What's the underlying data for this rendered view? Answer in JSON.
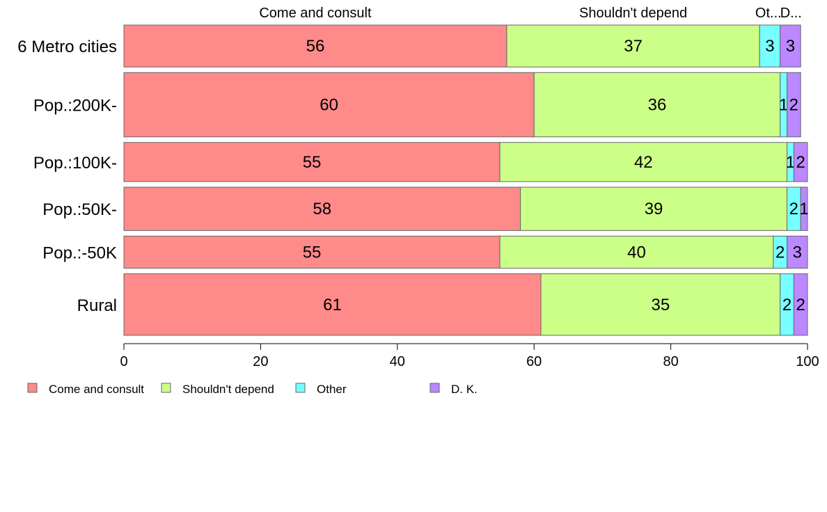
{
  "chart_data": {
    "type": "bar",
    "orientation": "horizontal",
    "stacked": true,
    "categories": [
      "6 Metro cities",
      "Pop.:200K-",
      "Pop.:100K-",
      "Pop.:50K-",
      "Pop.:-50K",
      "Rural"
    ],
    "series": [
      {
        "name": "Come and consult",
        "color": "#FF8A8A",
        "values": [
          56,
          60,
          55,
          58,
          55,
          61
        ]
      },
      {
        "name": "Shouldn't depend",
        "color": "#CCFF88",
        "values": [
          37,
          36,
          42,
          39,
          40,
          35
        ]
      },
      {
        "name": "Other",
        "color": "#77FFFF",
        "values": [
          3,
          1,
          1,
          2,
          2,
          2
        ]
      },
      {
        "name": "D. K.",
        "color": "#BB88FF",
        "values": [
          3,
          2,
          2,
          1,
          3,
          2
        ]
      }
    ],
    "bar_weights": [
      60,
      92,
      56,
      62,
      46,
      88
    ],
    "column_headers": [
      "Come and consult",
      "Shouldn't depend",
      "Ot...",
      "D..."
    ],
    "xlim": [
      0,
      100
    ],
    "xticks": [
      "0",
      "20",
      "40",
      "60",
      "80",
      "100"
    ],
    "legend": {
      "placement": "bottom-left",
      "entries": [
        "Come and consult",
        "Shouldn't depend",
        "Other",
        "D. K."
      ]
    }
  }
}
